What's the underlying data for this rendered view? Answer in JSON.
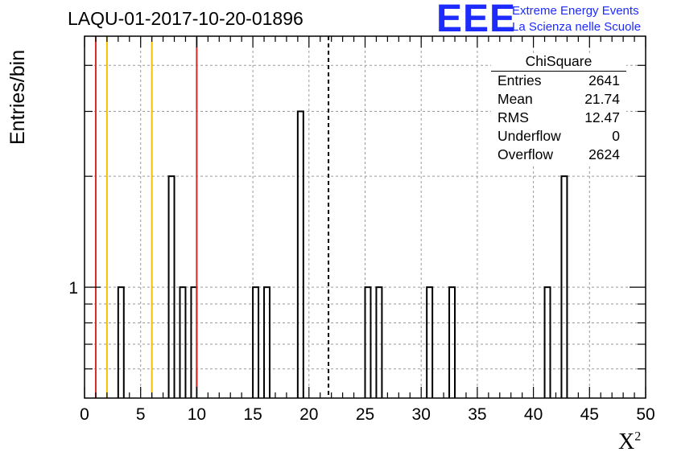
{
  "title": "LAQU-01-2017-10-20-01896",
  "logo": {
    "mark": "EEE",
    "line1": "Extreme Energy Events",
    "line2": "La Scienza nelle Scuole",
    "color": "#1d2bff"
  },
  "stats_box": {
    "header": "ChiSquare",
    "rows": [
      {
        "label": "Entries",
        "value": "2641"
      },
      {
        "label": "Mean",
        "value": "21.74"
      },
      {
        "label": "RMS",
        "value": "12.47"
      },
      {
        "label": "Underflow",
        "value": "0"
      },
      {
        "label": "Overflow",
        "value": "2624"
      }
    ]
  },
  "chart_data": {
    "type": "bar",
    "histogram": "step",
    "xlabel_text": "X",
    "xlabel_sup": "2",
    "ylabel": "Entries/bin",
    "xlim": [
      0,
      50
    ],
    "ylim": [
      0.5,
      4.8
    ],
    "yscale": "log",
    "grid": true,
    "bin_width": 0.5,
    "x_ticks": [
      0,
      5,
      10,
      15,
      20,
      25,
      30,
      35,
      40,
      45,
      50
    ],
    "y_tick_labels": [
      {
        "value": 1,
        "label": "1"
      }
    ],
    "bins": [
      {
        "x": 3.0,
        "count": 1
      },
      {
        "x": 7.5,
        "count": 2
      },
      {
        "x": 8.5,
        "count": 1
      },
      {
        "x": 9.5,
        "count": 1
      },
      {
        "x": 15.0,
        "count": 1
      },
      {
        "x": 16.0,
        "count": 1
      },
      {
        "x": 19.0,
        "count": 3
      },
      {
        "x": 25.0,
        "count": 1
      },
      {
        "x": 26.0,
        "count": 1
      },
      {
        "x": 30.5,
        "count": 1
      },
      {
        "x": 32.5,
        "count": 1
      },
      {
        "x": 41.0,
        "count": 1
      },
      {
        "x": 42.5,
        "count": 2
      }
    ],
    "vertical_lines": [
      {
        "x": 1,
        "color": "#d62a2a",
        "style": "solid"
      },
      {
        "x": 2,
        "color": "#f2c200",
        "style": "solid"
      },
      {
        "x": 6,
        "color": "#f2c200",
        "style": "solid"
      },
      {
        "x": 10,
        "color": "#d62a2a",
        "style": "solid"
      },
      {
        "x": 21.74,
        "color": "#000000",
        "style": "dashed"
      }
    ]
  }
}
